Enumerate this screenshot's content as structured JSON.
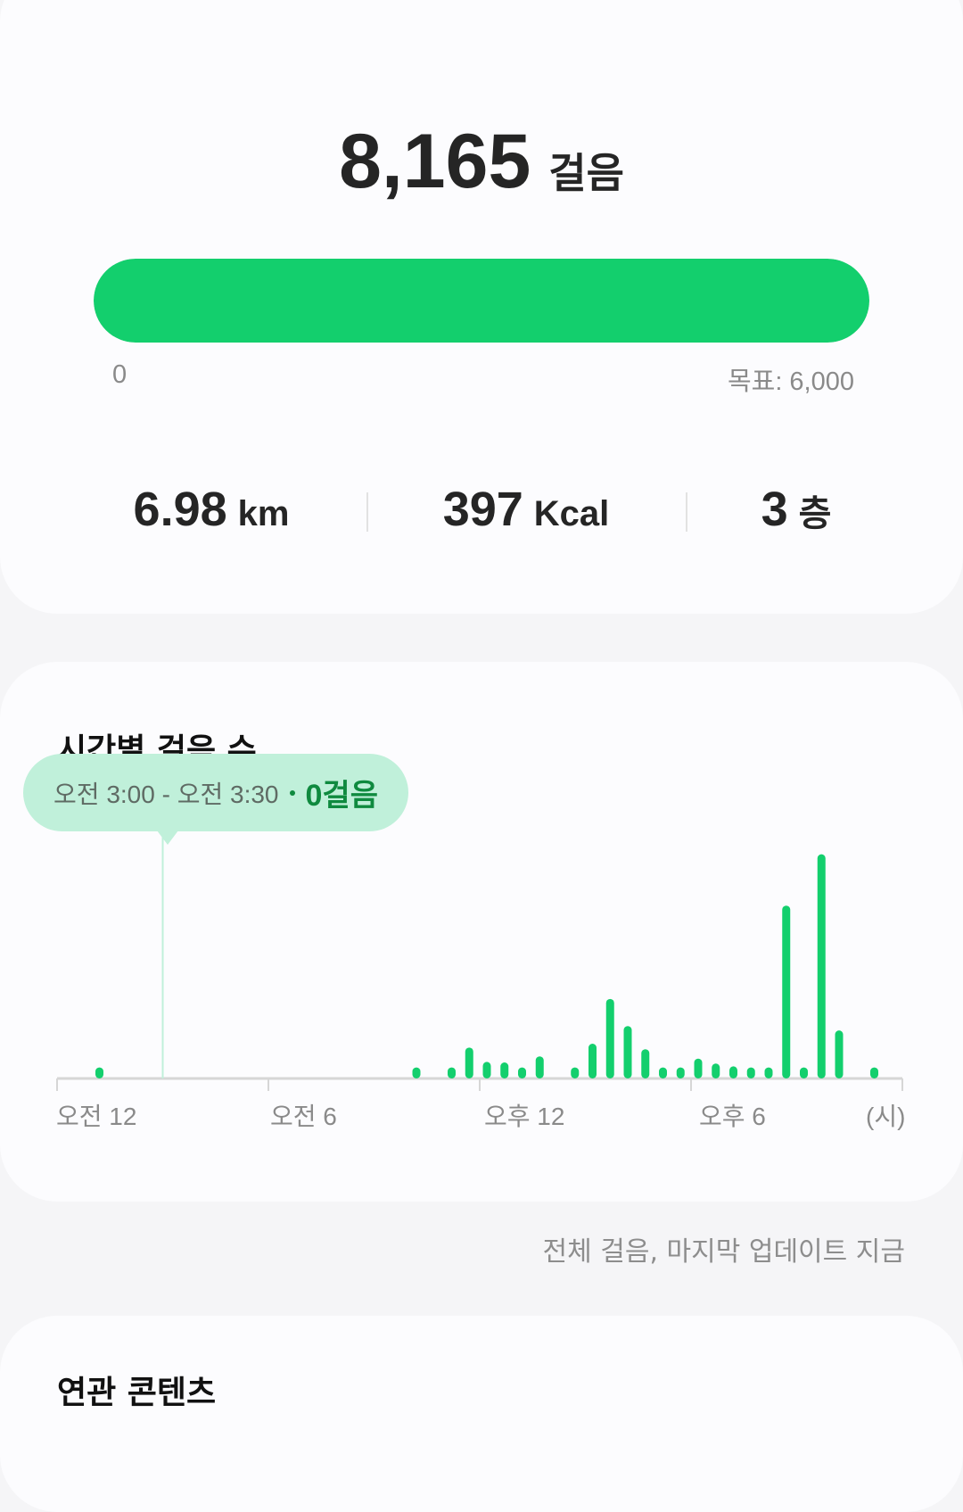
{
  "summary": {
    "steps": "8,165",
    "steps_unit": "걸음",
    "progress_percent": 100,
    "min_label": "0",
    "goal_label": "목표: 6,000",
    "stats": [
      {
        "value": "6.98",
        "unit": "km"
      },
      {
        "value": "397",
        "unit": "Kcal"
      },
      {
        "value": "3",
        "unit": "층"
      }
    ]
  },
  "hourly": {
    "title": "시간별 걸음 수",
    "tooltip": {
      "range": "오전 3:00 - 오전 3:30",
      "steps": "0걸음"
    },
    "axis_labels": [
      "오전 12",
      "오전 6",
      "오후 12",
      "오후 6",
      "(시)"
    ]
  },
  "footer": "전체 걸음, 마지막 업데이트 지금",
  "related": {
    "title": "연관 콘텐츠"
  },
  "colors": {
    "accent": "#13cf6d",
    "tooltip_bg": "#c0f0da",
    "tooltip_text": "#0f8a3f"
  },
  "chart_data": {
    "type": "bar",
    "x_unit": "half-hour slot starting time",
    "x": [
      "1:00",
      "10:00",
      "11:00",
      "11:30",
      "12:00",
      "12:30",
      "13:00",
      "13:30",
      "14:30",
      "15:00",
      "15:30",
      "16:00",
      "16:30",
      "17:00",
      "17:30",
      "18:00",
      "18:30",
      "19:00",
      "19:30",
      "20:00",
      "20:30",
      "21:00",
      "21:30",
      "22:00",
      "23:00"
    ],
    "values": [
      100,
      100,
      100,
      280,
      150,
      145,
      100,
      200,
      100,
      315,
      720,
      475,
      265,
      100,
      100,
      180,
      135,
      110,
      100,
      100,
      1565,
      100,
      2030,
      435,
      100
    ],
    "xlim": [
      "0:00",
      "24:00"
    ],
    "ylim": [
      0,
      2100
    ],
    "tick_labels": [
      "오전 12",
      "오전 6",
      "오후 12",
      "오후 6"
    ],
    "xlabel": "(시)",
    "grid": false,
    "selected": "3:00"
  }
}
